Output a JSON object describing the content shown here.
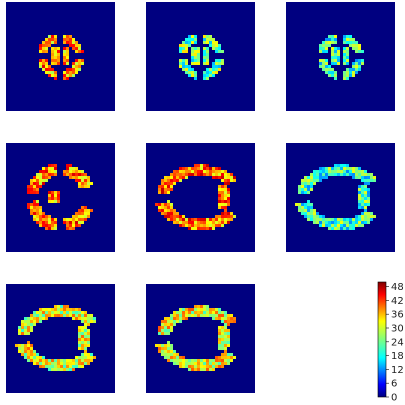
{
  "chart_data": {
    "type": "heatmap",
    "description_grid": "3x3 grid of 8 axial slice heatmaps with a shared vertical colorbar",
    "colormap": "jet",
    "background_value": 0,
    "value_range": [
      0,
      50
    ],
    "panels": [
      {
        "index": 1,
        "slice_shape": "ring-small-cross",
        "dominant_value": 36
      },
      {
        "index": 2,
        "slice_shape": "ring-small-cross",
        "dominant_value": 24
      },
      {
        "index": 3,
        "slice_shape": "ring-small-cross",
        "dominant_value": 22
      },
      {
        "index": 4,
        "slice_shape": "ring-medium-open-right",
        "dominant_value": 37
      },
      {
        "index": 5,
        "slice_shape": "ring-large-open-right",
        "dominant_value": 38
      },
      {
        "index": 6,
        "slice_shape": "ring-large-open-right",
        "dominant_value": 22
      },
      {
        "index": 7,
        "slice_shape": "ring-large-open-right",
        "dominant_value": 30
      },
      {
        "index": 8,
        "slice_shape": "ring-large-open-right",
        "dominant_value": 31
      }
    ],
    "colorbar": {
      "ticks": [
        "48",
        "42",
        "36",
        "30",
        "24",
        "18",
        "12",
        "6",
        "0"
      ],
      "tick_values": [
        48,
        42,
        36,
        30,
        24,
        18,
        12,
        6,
        0
      ],
      "min": 0,
      "max": 50
    }
  }
}
